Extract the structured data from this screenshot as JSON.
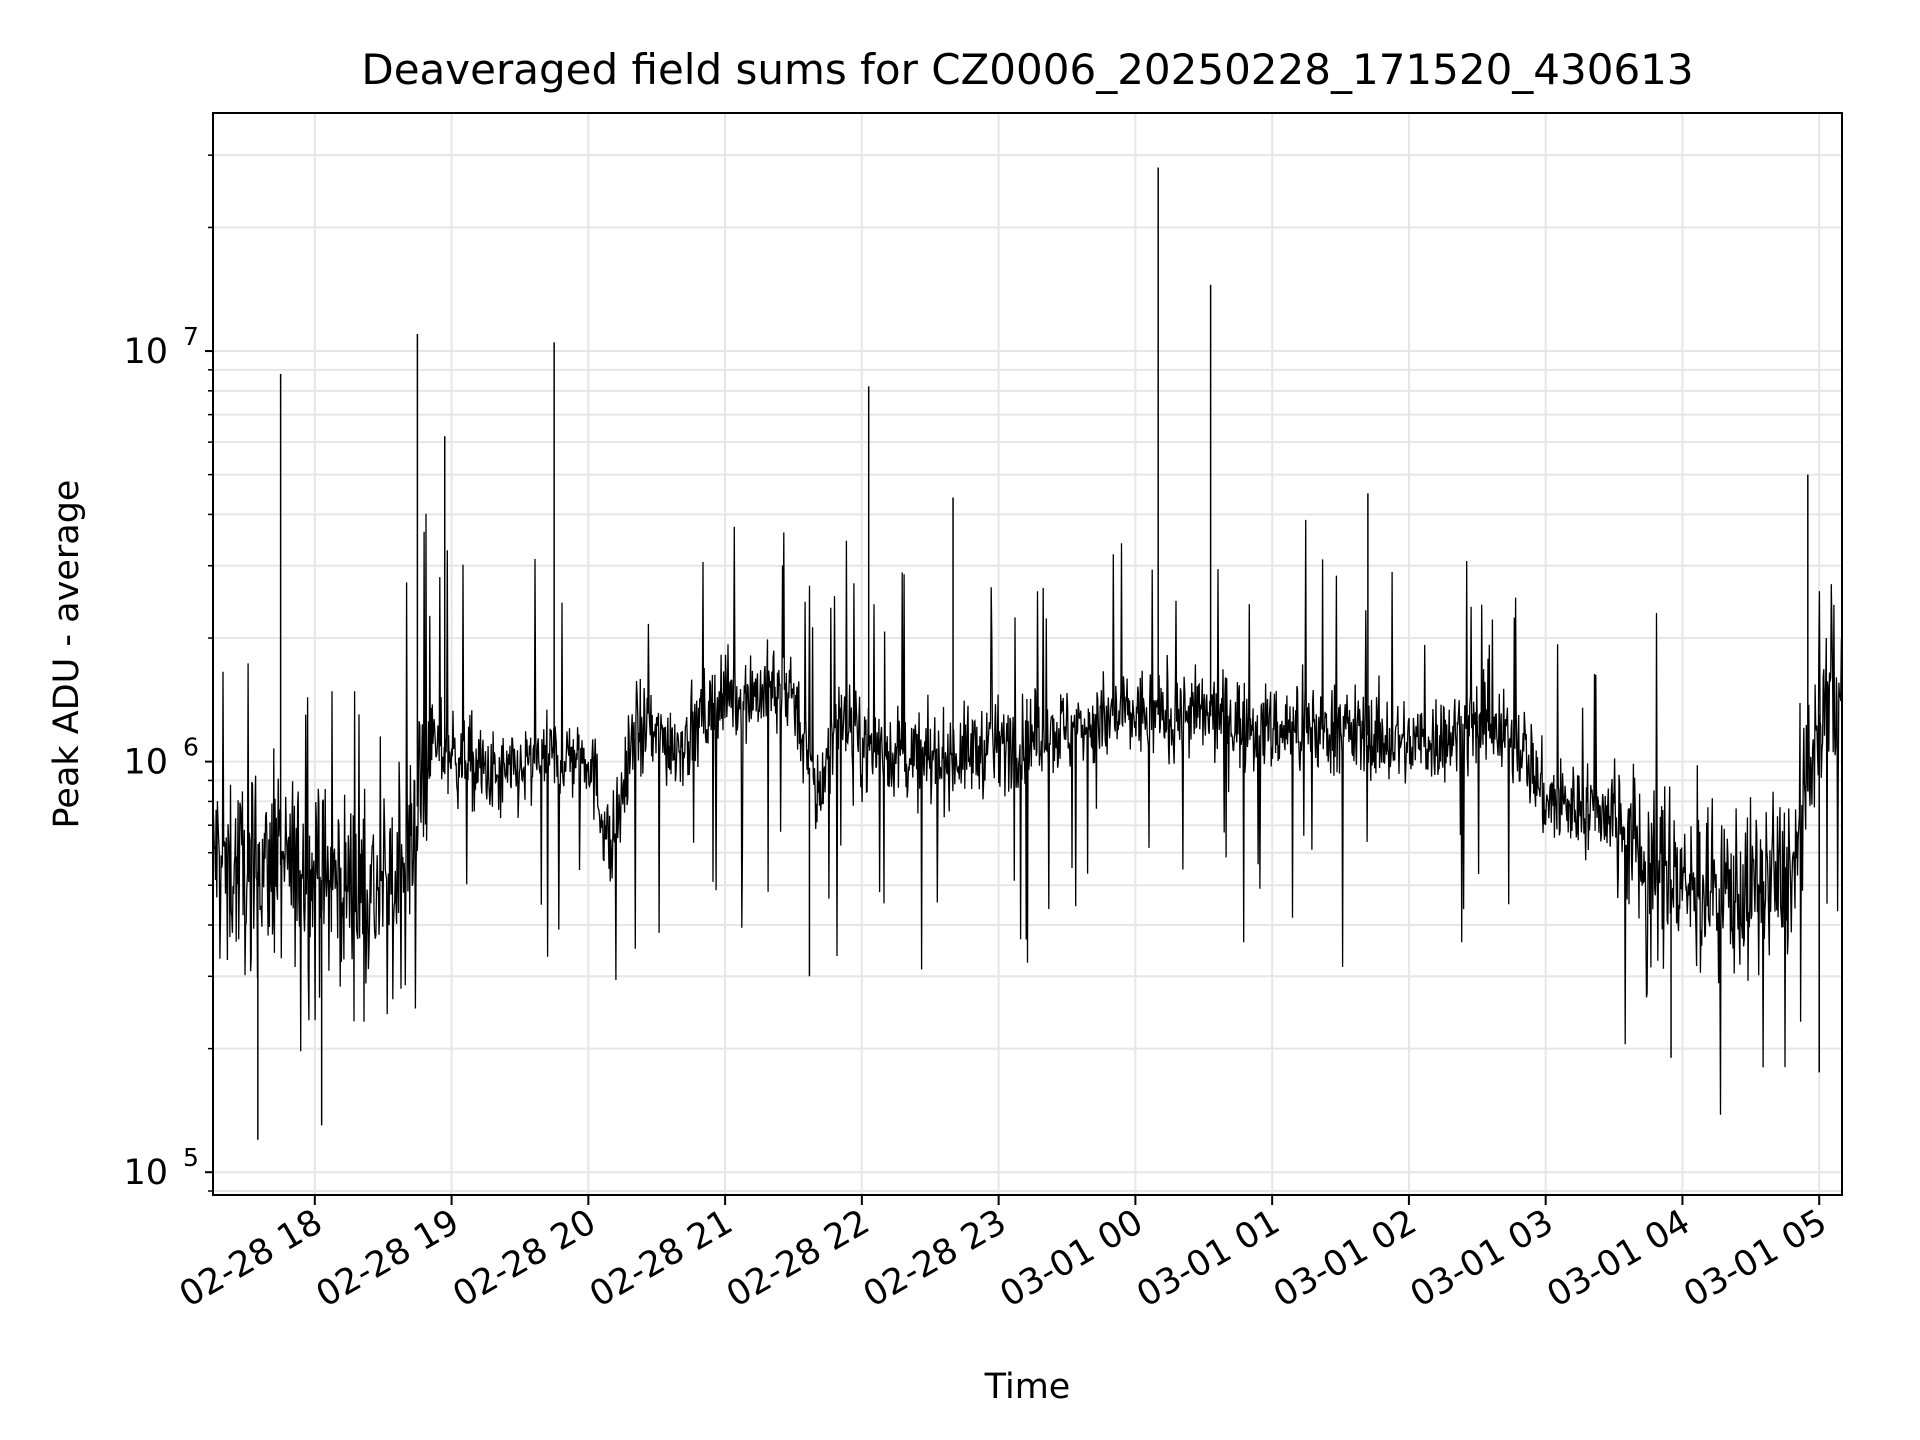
{
  "chart_data": {
    "type": "line",
    "title": "Deaveraged field sums for CZ0006_20250228_171520_430613",
    "xlabel": "Time",
    "ylabel": "Peak ADU - average",
    "yscale": "log",
    "ylim": [
      88000,
      38000000
    ],
    "xlim": [
      "2025-02-28 17:15:20",
      "2025-03-01 05:10:00"
    ],
    "grid": true,
    "legend": "none",
    "line_color": "#000000",
    "x_ticks": [
      "02-28 18",
      "02-28 19",
      "02-28 20",
      "02-28 21",
      "02-28 22",
      "02-28 23",
      "03-01 00",
      "03-01 01",
      "03-01 02",
      "03-01 03",
      "03-01 04",
      "03-01 05"
    ],
    "y_ticks": [
      {
        "base": "10",
        "exp": "5",
        "value": 100000
      },
      {
        "base": "10",
        "exp": "6",
        "value": 1000000
      },
      {
        "base": "10",
        "exp": "7",
        "value": 10000000
      }
    ],
    "series": [
      {
        "values": [
          {
            "x": "2025-02-28 17:15",
            "y": 600000
          },
          {
            "x": "2025-02-28 17:30",
            "y": 530000
          },
          {
            "x": "2025-02-28 17:45",
            "y": 560000
          },
          {
            "x": "2025-02-28 18:00",
            "y": 520000
          },
          {
            "x": "2025-02-28 18:15",
            "y": 500000
          },
          {
            "x": "2025-02-28 18:30",
            "y": 470000
          },
          {
            "x": "2025-02-28 18:40",
            "y": 550000
          },
          {
            "x": "2025-02-28 18:50",
            "y": 1100000
          },
          {
            "x": "2025-02-28 19:00",
            "y": 1050000
          },
          {
            "x": "2025-02-28 19:20",
            "y": 900000
          },
          {
            "x": "2025-02-28 19:40",
            "y": 1000000
          },
          {
            "x": "2025-02-28 20:00",
            "y": 1050000
          },
          {
            "x": "2025-02-28 20:10",
            "y": 600000
          },
          {
            "x": "2025-02-28 20:20",
            "y": 1200000
          },
          {
            "x": "2025-02-28 20:40",
            "y": 1100000
          },
          {
            "x": "2025-02-28 21:00",
            "y": 1450000
          },
          {
            "x": "2025-02-28 21:30",
            "y": 1500000
          },
          {
            "x": "2025-02-28 21:40",
            "y": 800000
          },
          {
            "x": "2025-02-28 21:50",
            "y": 1300000
          },
          {
            "x": "2025-02-28 22:00",
            "y": 1100000
          },
          {
            "x": "2025-02-28 22:30",
            "y": 1000000
          },
          {
            "x": "2025-02-28 23:00",
            "y": 1100000
          },
          {
            "x": "2025-02-28 23:30",
            "y": 1200000
          },
          {
            "x": "2025-03-01 00:00",
            "y": 1300000
          },
          {
            "x": "2025-03-01 00:30",
            "y": 1300000
          },
          {
            "x": "2025-03-01 01:00",
            "y": 1200000
          },
          {
            "x": "2025-03-01 01:30",
            "y": 1200000
          },
          {
            "x": "2025-03-01 02:00",
            "y": 1100000
          },
          {
            "x": "2025-03-01 02:30",
            "y": 1200000
          },
          {
            "x": "2025-03-01 02:50",
            "y": 1100000
          },
          {
            "x": "2025-03-01 03:00",
            "y": 800000
          },
          {
            "x": "2025-03-01 03:30",
            "y": 750000
          },
          {
            "x": "2025-03-01 03:45",
            "y": 550000
          },
          {
            "x": "2025-03-01 04:00",
            "y": 500000
          },
          {
            "x": "2025-03-01 04:30",
            "y": 480000
          },
          {
            "x": "2025-03-01 04:50",
            "y": 550000
          },
          {
            "x": "2025-03-01 05:00",
            "y": 1300000
          },
          {
            "x": "2025-03-01 05:10",
            "y": 1500000
          }
        ],
        "spikes": [
          {
            "x": "2025-02-28 17:45",
            "y": 8800000
          },
          {
            "x": "2025-02-28 18:45",
            "y": 11000000
          },
          {
            "x": "2025-02-28 18:57",
            "y": 6200000
          },
          {
            "x": "2025-02-28 19:45",
            "y": 10500000
          },
          {
            "x": "2025-02-28 22:03",
            "y": 8200000
          },
          {
            "x": "2025-02-28 22:40",
            "y": 4400000
          },
          {
            "x": "2025-03-01 00:10",
            "y": 28000000
          },
          {
            "x": "2025-03-01 00:33",
            "y": 14500000
          },
          {
            "x": "2025-03-01 01:42",
            "y": 4500000
          },
          {
            "x": "2025-03-01 04:55",
            "y": 5000000
          }
        ],
        "dips": [
          {
            "x": "2025-02-28 17:35",
            "y": 120000
          },
          {
            "x": "2025-02-28 18:03",
            "y": 130000
          },
          {
            "x": "2025-02-28 21:37",
            "y": 300000
          },
          {
            "x": "2025-03-01 03:55",
            "y": 190000
          },
          {
            "x": "2025-03-01 05:00",
            "y": 175000
          }
        ]
      }
    ]
  }
}
